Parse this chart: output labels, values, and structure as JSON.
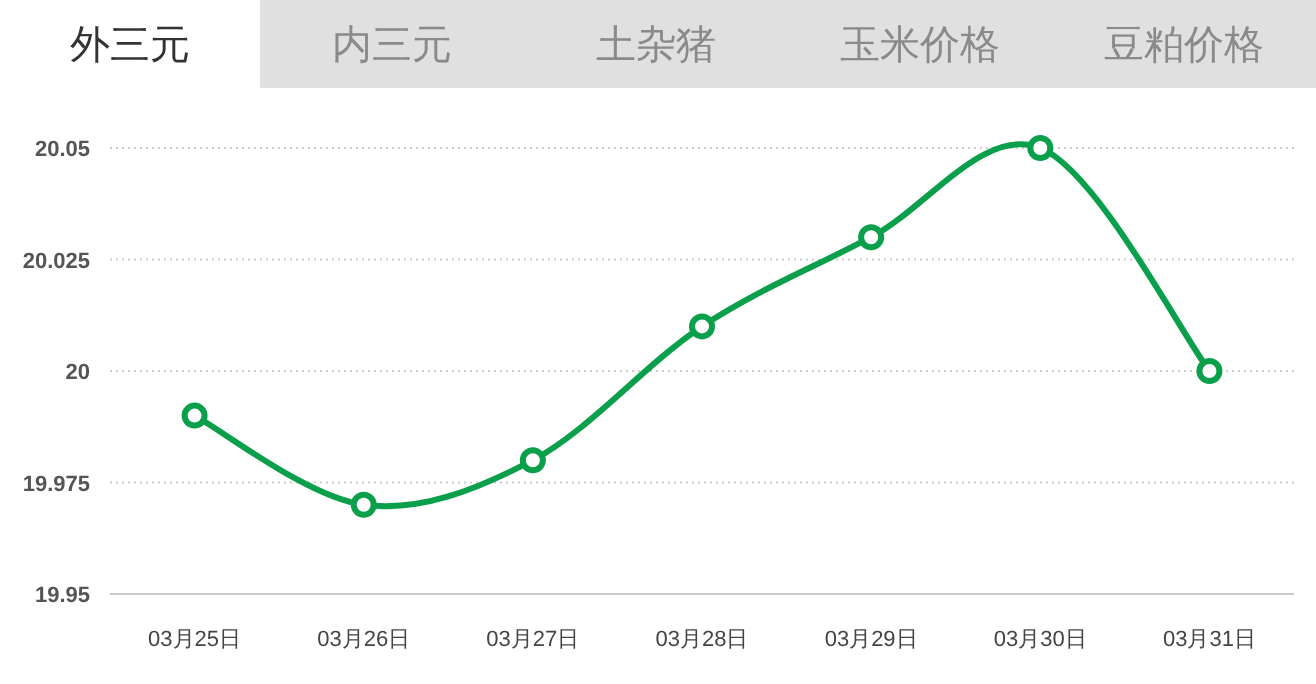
{
  "chart_data": {
    "type": "line",
    "annotations": [
      "外三元",
      "内三元",
      "土杂猪",
      "玉米价格",
      "豆粕价格"
    ],
    "categories": [
      "03月25日",
      "03月26日",
      "03月27日",
      "03月28日",
      "03月29日",
      "03月30日",
      "03月31日"
    ],
    "values": [
      19.99,
      19.97,
      19.98,
      20.01,
      20.03,
      20.05,
      20.0
    ],
    "color": "#0aa04b",
    "ylim": [
      19.95,
      20.05
    ],
    "yticks": [
      19.95,
      19.975,
      20,
      20.025,
      20.05
    ],
    "grid": "y",
    "marker": "circle",
    "line_style": "solid"
  }
}
